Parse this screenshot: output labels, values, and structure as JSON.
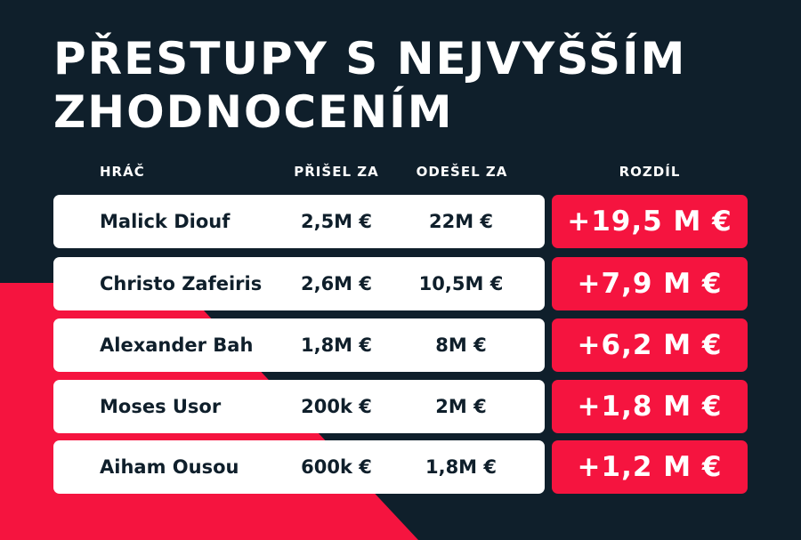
{
  "title": {
    "line1": "PŘESTUPY S NEJVYŠŠÍM",
    "line2": "ZHODNOCENÍM"
  },
  "headers": {
    "player": "HRÁČ",
    "came_for": "PŘIŠEL ZA",
    "left_for": "ODEŠEL ZA",
    "difference": "ROZDÍL"
  },
  "rows": [
    {
      "name": "Malick Diouf",
      "came_for": "2,5M €",
      "left_for": "22M €",
      "difference": "+19,5 M €"
    },
    {
      "name": "Christo Zafeiris",
      "came_for": "2,6M €",
      "left_for": "10,5M €",
      "difference": "+7,9 M €"
    },
    {
      "name": "Alexander Bah",
      "came_for": "1,8M €",
      "left_for": "8M €",
      "difference": "+6,2 M €"
    },
    {
      "name": "Moses Usor",
      "came_for": "200k €",
      "left_for": "2M €",
      "difference": "+1,8 M €"
    },
    {
      "name": "Aiham Ousou",
      "came_for": "600k €",
      "left_for": "1,8M €",
      "difference": "+1,2 M €"
    }
  ],
  "colors": {
    "background": "#0f1f2b",
    "accent": "#f5143f",
    "card": "#ffffff"
  }
}
